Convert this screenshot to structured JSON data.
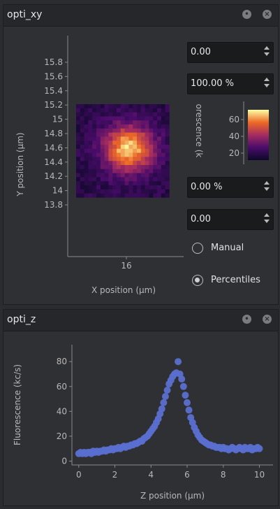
{
  "xy_dock": {
    "title": "opti_xy",
    "float_icon": "float-icon",
    "close_icon": "close-icon",
    "image": {
      "xlabel": "X position (µm)",
      "ylabel": "Y position (µm)",
      "x_ticks": [
        "16"
      ],
      "y_ticks": [
        "15.8",
        "15.6",
        "15.4",
        "15.2",
        "15",
        "14.8",
        "14.6",
        "14.4",
        "14.2",
        "14",
        "13.8"
      ]
    },
    "colorbar": {
      "label": "orescence (k",
      "ticks": [
        "60",
        "40",
        "20"
      ]
    },
    "cb_max_value": "0.00",
    "cb_max_percent": "100.00 %",
    "cb_min_percent": "0.00 %",
    "cb_min_value": "0.00",
    "radio_manual": "Manual",
    "radio_percentiles": "Percentiles",
    "selected_mode": "Percentiles"
  },
  "z_dock": {
    "title": "opti_z",
    "float_icon": "float-icon",
    "close_icon": "close-icon"
  },
  "chart_data": {
    "type": "scatter",
    "xlabel": "Z position (µm)",
    "ylabel": "Fluorescence (kc/s)",
    "xlim": [
      -0.3,
      10.6
    ],
    "ylim": [
      -2,
      88
    ],
    "x_ticks": [
      0,
      2,
      4,
      6,
      8,
      10
    ],
    "y_ticks": [
      0,
      20,
      40,
      60,
      80
    ],
    "marker_color": "#5a6fd0",
    "series": [
      {
        "x": [
          0,
          0.1,
          0.2,
          0.3,
          0.4,
          0.5,
          0.6,
          0.7,
          0.8,
          0.9,
          1.0,
          1.1,
          1.2,
          1.3,
          1.4,
          1.5,
          1.6,
          1.7,
          1.8,
          1.9,
          2.0,
          2.1,
          2.2,
          2.3,
          2.4,
          2.5,
          2.6,
          2.7,
          2.8,
          2.9,
          3.0,
          3.1,
          3.2,
          3.3,
          3.4,
          3.5,
          3.6,
          3.7,
          3.8,
          3.9,
          4.0,
          4.1,
          4.2,
          4.3,
          4.4,
          4.5,
          4.6,
          4.7,
          4.8,
          4.9,
          5.0,
          5.1,
          5.2,
          5.3,
          5.4,
          5.5,
          5.6,
          5.7,
          5.8,
          5.9,
          6.0,
          6.1,
          6.2,
          6.3,
          6.4,
          6.5,
          6.6,
          6.7,
          6.8,
          6.9,
          7.0,
          7.1,
          7.2,
          7.3,
          7.4,
          7.5,
          7.6,
          7.7,
          7.8,
          7.9,
          8.0,
          8.1,
          8.2,
          8.3,
          8.4,
          8.5,
          8.6,
          8.7,
          8.8,
          8.9,
          9.0,
          9.1,
          9.2,
          9.3,
          9.4,
          9.5,
          9.6,
          9.7,
          9.8,
          9.9,
          10.0
        ],
        "y": [
          6,
          7,
          6,
          7,
          6,
          7,
          7,
          6,
          8,
          7,
          8,
          7,
          8,
          8,
          9,
          8,
          9,
          9,
          10,
          9,
          10,
          10,
          11,
          10,
          11,
          12,
          11,
          12,
          12,
          13,
          13,
          14,
          14,
          15,
          16,
          16,
          18,
          19,
          20,
          22,
          24,
          26,
          28,
          31,
          34,
          38,
          42,
          47,
          52,
          57,
          62,
          65,
          68,
          70,
          71,
          80,
          70,
          66,
          60,
          53,
          47,
          41,
          35,
          31,
          27,
          24,
          21,
          19,
          17,
          16,
          15,
          14,
          13,
          13,
          12,
          12,
          11,
          11,
          11,
          10,
          11,
          10,
          10,
          9,
          10,
          11,
          10,
          9,
          10,
          11,
          10,
          9,
          11,
          10,
          10,
          11,
          9,
          10,
          10,
          11,
          10
        ]
      }
    ]
  }
}
